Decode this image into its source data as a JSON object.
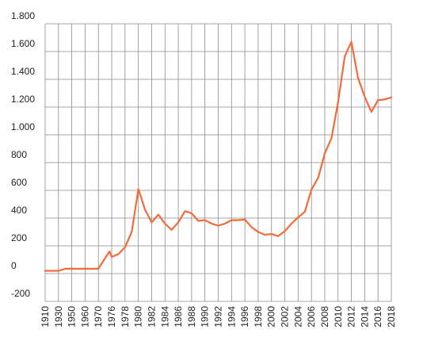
{
  "chart_data": {
    "type": "line",
    "title": "",
    "xlabel": "",
    "ylabel": "",
    "xlim": [
      1910,
      2018
    ],
    "ylim": [
      -200,
      1800
    ],
    "grid": true,
    "line_color": "#f26b3a",
    "grid_color": "#8a8a8a",
    "y_ticks": [
      {
        "value": 1800,
        "label": "1.800"
      },
      {
        "value": 1600,
        "label": "1.600"
      },
      {
        "value": 1400,
        "label": "1.400"
      },
      {
        "value": 1200,
        "label": "1.200"
      },
      {
        "value": 1000,
        "label": "1.000"
      },
      {
        "value": 800,
        "label": "800"
      },
      {
        "value": 600,
        "label": "600"
      },
      {
        "value": 400,
        "label": "400"
      },
      {
        "value": 200,
        "label": "200"
      },
      {
        "value": 0,
        "label": "0"
      },
      {
        "value": -200,
        "label": "-200"
      }
    ],
    "x_ticks": [
      {
        "value": 1910,
        "label": "1910"
      },
      {
        "value": 1930,
        "label": "1930"
      },
      {
        "value": 1950,
        "label": "1950"
      },
      {
        "value": 1960,
        "label": "1960"
      },
      {
        "value": 1970,
        "label": "1970"
      },
      {
        "value": 1976,
        "label": "1976"
      },
      {
        "value": 1978,
        "label": "1978"
      },
      {
        "value": 1980,
        "label": "1980"
      },
      {
        "value": 1982,
        "label": "1982"
      },
      {
        "value": 1984,
        "label": "1984"
      },
      {
        "value": 1986,
        "label": "1986"
      },
      {
        "value": 1988,
        "label": "1988"
      },
      {
        "value": 1990,
        "label": "1990"
      },
      {
        "value": 1992,
        "label": "1992"
      },
      {
        "value": 1994,
        "label": "1994"
      },
      {
        "value": 1996,
        "label": "1996"
      },
      {
        "value": 1998,
        "label": "1998"
      },
      {
        "value": 2000,
        "label": "2000"
      },
      {
        "value": 2002,
        "label": "2002"
      },
      {
        "value": 2004,
        "label": "2004"
      },
      {
        "value": 2006,
        "label": "2006"
      },
      {
        "value": 2008,
        "label": "2008"
      },
      {
        "value": 2010,
        "label": "2010"
      },
      {
        "value": 2012,
        "label": "2012"
      },
      {
        "value": 2014,
        "label": "2014"
      },
      {
        "value": 2016,
        "label": "2016"
      },
      {
        "value": 2018,
        "label": "2018"
      }
    ],
    "series": [
      {
        "points": [
          [
            1910,
            20
          ],
          [
            1920,
            20
          ],
          [
            1930,
            20
          ],
          [
            1940,
            35
          ],
          [
            1950,
            35
          ],
          [
            1960,
            35
          ],
          [
            1970,
            35
          ],
          [
            1975,
            160
          ],
          [
            1976,
            120
          ],
          [
            1977,
            140
          ],
          [
            1978,
            190
          ],
          [
            1979,
            300
          ],
          [
            1980,
            610
          ],
          [
            1981,
            460
          ],
          [
            1982,
            370
          ],
          [
            1983,
            425
          ],
          [
            1984,
            360
          ],
          [
            1985,
            315
          ],
          [
            1986,
            370
          ],
          [
            1987,
            450
          ],
          [
            1988,
            435
          ],
          [
            1989,
            380
          ],
          [
            1990,
            385
          ],
          [
            1991,
            360
          ],
          [
            1992,
            345
          ],
          [
            1993,
            360
          ],
          [
            1994,
            385
          ],
          [
            1995,
            385
          ],
          [
            1996,
            390
          ],
          [
            1997,
            335
          ],
          [
            1998,
            300
          ],
          [
            1999,
            280
          ],
          [
            2000,
            285
          ],
          [
            2001,
            270
          ],
          [
            2002,
            305
          ],
          [
            2003,
            360
          ],
          [
            2004,
            405
          ],
          [
            2005,
            445
          ],
          [
            2006,
            605
          ],
          [
            2007,
            690
          ],
          [
            2008,
            865
          ],
          [
            2009,
            975
          ],
          [
            2010,
            1235
          ],
          [
            2011,
            1565
          ],
          [
            2012,
            1670
          ],
          [
            2013,
            1410
          ],
          [
            2014,
            1275
          ],
          [
            2015,
            1165
          ],
          [
            2016,
            1250
          ],
          [
            2017,
            1255
          ],
          [
            2018,
            1270
          ]
        ]
      }
    ]
  }
}
